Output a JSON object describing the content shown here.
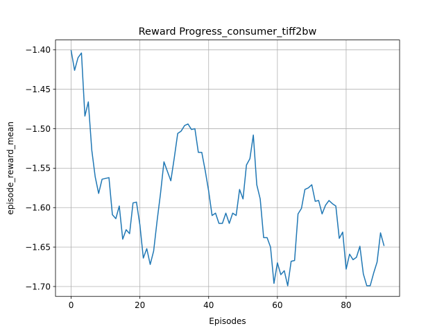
{
  "chart_data": {
    "type": "line",
    "title": "Reward Progress_consumer_tiff2bw",
    "xlabel": "Episodes",
    "ylabel": "episode_reward_mean",
    "xlim": [
      -4.55,
      95.55
    ],
    "ylim": [
      -1.7125,
      -1.3875
    ],
    "xticks": [
      0,
      20,
      40,
      60,
      80
    ],
    "xtick_labels": [
      "0",
      "20",
      "40",
      "60",
      "80"
    ],
    "yticks": [
      -1.4,
      -1.45,
      -1.5,
      -1.55,
      -1.6,
      -1.65,
      -1.7
    ],
    "ytick_labels": [
      "−1.40",
      "−1.45",
      "−1.50",
      "−1.55",
      "−1.60",
      "−1.65",
      "−1.70"
    ],
    "grid": true,
    "legend": "none",
    "series": [
      {
        "color": "#1f77b4",
        "x": [
          0,
          1,
          2,
          3,
          4,
          5,
          6,
          7,
          8,
          9,
          10,
          11,
          12,
          13,
          14,
          15,
          16,
          17,
          18,
          19,
          20,
          21,
          22,
          23,
          24,
          25,
          26,
          27,
          28,
          29,
          30,
          31,
          32,
          33,
          34,
          35,
          36,
          37,
          38,
          39,
          40,
          41,
          42,
          43,
          44,
          45,
          46,
          47,
          48,
          49,
          50,
          51,
          52,
          53,
          54,
          55,
          56,
          57,
          58,
          59,
          60,
          61,
          62,
          63,
          64,
          65,
          66,
          67,
          68,
          69,
          70,
          71,
          72,
          73,
          74,
          75,
          76,
          77,
          78,
          79,
          80,
          81,
          82,
          83,
          84,
          85,
          86,
          87,
          88,
          89,
          90,
          91
        ],
        "values": [
          -1.401,
          -1.426,
          -1.41,
          -1.404,
          -1.484,
          -1.466,
          -1.527,
          -1.561,
          -1.582,
          -1.564,
          -1.563,
          -1.562,
          -1.609,
          -1.614,
          -1.598,
          -1.64,
          -1.628,
          -1.633,
          -1.594,
          -1.593,
          -1.622,
          -1.664,
          -1.652,
          -1.672,
          -1.655,
          -1.617,
          -1.582,
          -1.542,
          -1.554,
          -1.566,
          -1.537,
          -1.506,
          -1.503,
          -1.496,
          -1.494,
          -1.501,
          -1.5,
          -1.53,
          -1.53,
          -1.553,
          -1.579,
          -1.61,
          -1.607,
          -1.62,
          -1.62,
          -1.607,
          -1.62,
          -1.607,
          -1.61,
          -1.577,
          -1.589,
          -1.546,
          -1.538,
          -1.508,
          -1.571,
          -1.589,
          -1.638,
          -1.638,
          -1.65,
          -1.696,
          -1.67,
          -1.685,
          -1.68,
          -1.699,
          -1.668,
          -1.667,
          -1.608,
          -1.601,
          -1.577,
          -1.575,
          -1.571,
          -1.592,
          -1.591,
          -1.608,
          -1.597,
          -1.591,
          -1.595,
          -1.598,
          -1.639,
          -1.631,
          -1.678,
          -1.659,
          -1.666,
          -1.663,
          -1.649,
          -1.684,
          -1.699,
          -1.699,
          -1.683,
          -1.669,
          -1.632,
          -1.648
        ]
      }
    ]
  }
}
